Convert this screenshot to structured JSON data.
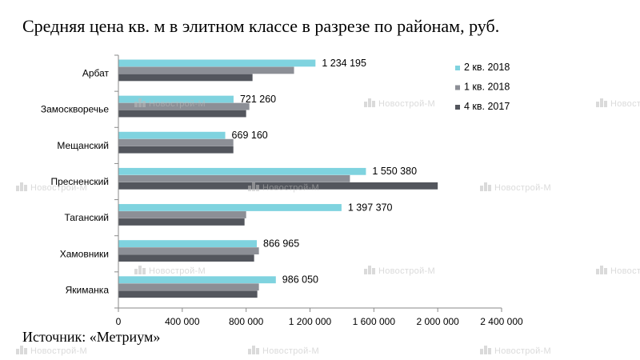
{
  "title": "Средняя цена кв. м в элитном классе в разрезе по районам, руб.",
  "source": "Источник: «Метриум»",
  "watermark": "Новострой-М",
  "chart_data": {
    "type": "bar",
    "orientation": "horizontal",
    "categories": [
      "Арбат",
      "Замоскворечье",
      "Мещанский",
      "Пресненский",
      "Таганский",
      "Хамовники",
      "Якиманка"
    ],
    "series": [
      {
        "name": "2 кв. 2018",
        "color": "#7fd3df",
        "values": [
          1234195,
          721260,
          669160,
          1550380,
          1397370,
          866965,
          986050
        ]
      },
      {
        "name": "1 кв. 2018",
        "color": "#8c8f96",
        "values": [
          1100000,
          820000,
          720000,
          1450000,
          800000,
          880000,
          880000
        ]
      },
      {
        "name": "4 кв. 2017",
        "color": "#53565d",
        "values": [
          840000,
          800000,
          720000,
          2000000,
          790000,
          850000,
          870000
        ]
      }
    ],
    "data_labels": [
      "1 234 195",
      "721 260",
      "669 160",
      "1 550 380",
      "1 397 370",
      "866 965",
      "986 050"
    ],
    "x_ticks": [
      0,
      400000,
      800000,
      1200000,
      1600000,
      2000000,
      2400000
    ],
    "x_tick_labels": [
      "0",
      "400 000",
      "800 000",
      "1 200 000",
      "1 600 000",
      "2 000 000",
      "2 400 000"
    ],
    "xlim": [
      0,
      2400000
    ],
    "grid": false,
    "legend_position": "top-right"
  }
}
